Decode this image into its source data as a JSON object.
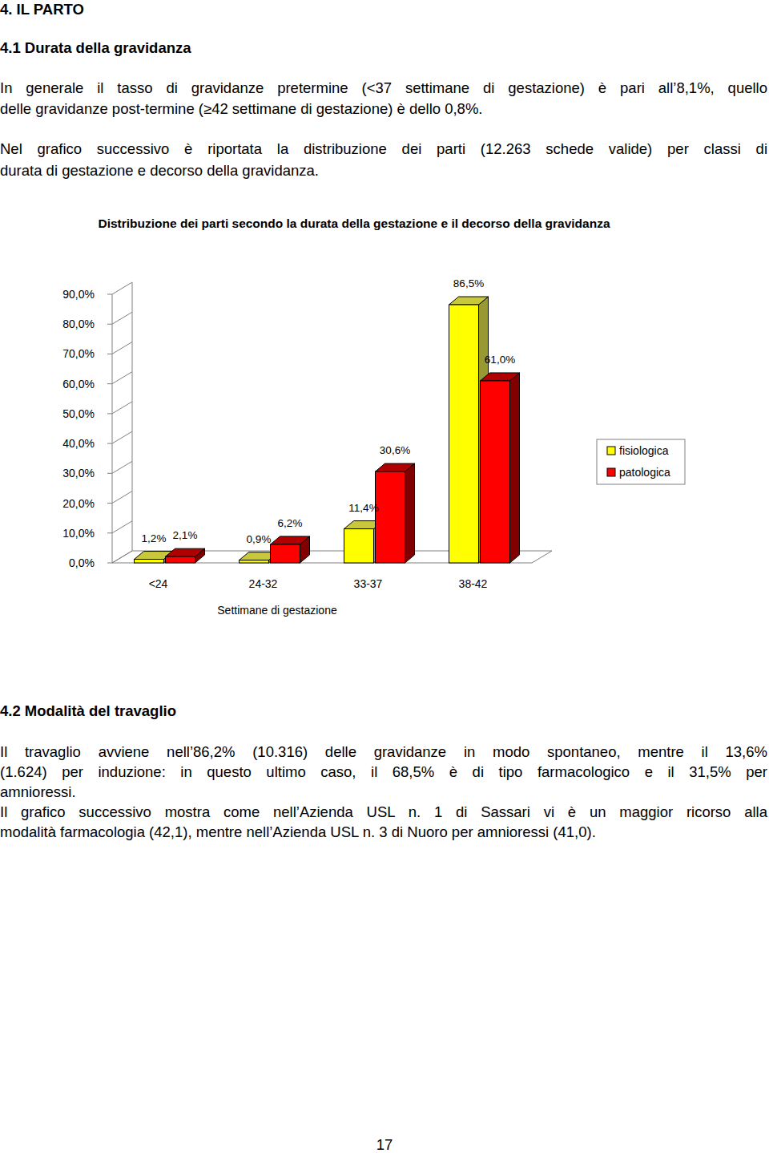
{
  "header": {
    "chapter": "4. IL PARTO",
    "section": "4.1 Durata della gravidanza"
  },
  "intro": [
    [
      "In generale il tasso di gravidanze pretermine (<37 settimane di gestazione) è pari all’8,1%, quello",
      "delle gravidanze post-termine (≥42 settimane di gestazione) è dello 0,8%."
    ],
    [
      "Nel grafico successivo è riportata la distribuzione dei parti (12.263 schede valide) per classi di",
      "durata di gestazione e decorso della gravidanza."
    ]
  ],
  "chart_data": {
    "type": "bar",
    "title": "Distribuzione dei parti secondo la durata della gestazione e il decorso della gravidanza",
    "x_label": "Settimane di gestazione",
    "categories": [
      "<24",
      "24-32",
      "33-37",
      "38-42"
    ],
    "series": [
      {
        "name": "fisiologica",
        "color": "#ffff00",
        "values": [
          1.2,
          0.9,
          11.4,
          86.5
        ],
        "value_labels": [
          "1,2%",
          "0,9%",
          "11,4%",
          "86,5%"
        ]
      },
      {
        "name": "patologica",
        "color": "#ff0000",
        "values": [
          2.1,
          6.2,
          30.6,
          61.0
        ],
        "value_labels": [
          "2,1%",
          "6,2%",
          "30,6%",
          "61,0%"
        ]
      }
    ],
    "ylim": [
      0,
      90
    ],
    "yticks": [
      {
        "value": 0,
        "label": "0,0%"
      },
      {
        "value": 10,
        "label": "10,0%"
      },
      {
        "value": 20,
        "label": "20,0%"
      },
      {
        "value": 30,
        "label": "30,0%"
      },
      {
        "value": 40,
        "label": "40,0%"
      },
      {
        "value": 50,
        "label": "50,0%"
      },
      {
        "value": 60,
        "label": "60,0%"
      },
      {
        "value": 70,
        "label": "70,0%"
      },
      {
        "value": 80,
        "label": "80,0%"
      },
      {
        "value": 90,
        "label": "90,0%"
      }
    ],
    "grid": false,
    "legend": "right",
    "data_labels": true
  },
  "section2": {
    "title": "4.2 Modalità del travaglio",
    "paragraphs": [
      [
        "Il travaglio avviene nell’86,2% (10.316) delle gravidanze in modo spontaneo, mentre il 13,6%",
        "(1.624) per induzione: in questo ultimo caso, il 68,5% è di tipo farmacologico e il 31,5% per",
        "amnioressi."
      ],
      [
        "Il grafico successivo mostra come nell’Azienda USL n. 1 di Sassari vi è un maggior ricorso alla",
        "modalità farmacologia (42,1), mentre nell’Azienda USL n. 3 di Nuoro per amnioressi (41,0)."
      ]
    ]
  },
  "page_number": "17"
}
